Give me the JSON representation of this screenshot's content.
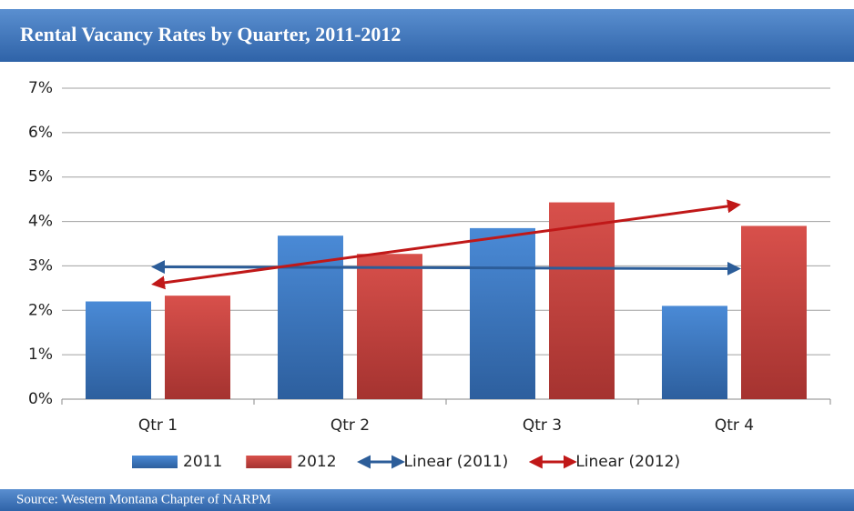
{
  "chart_data": {
    "type": "bar",
    "title": "Rental Vacancy Rates by Quarter, 2011-2012",
    "source": "Source: Western Montana Chapter of NARPM",
    "categories": [
      "Qtr 1",
      "Qtr 2",
      "Qtr 3",
      "Qtr 4"
    ],
    "series": [
      {
        "name": "2011",
        "color": "#3f7cc4",
        "values": [
          2.2,
          3.68,
          3.85,
          2.1
        ]
      },
      {
        "name": "2012",
        "color": "#c9403c",
        "values": [
          2.33,
          3.27,
          4.43,
          3.9
        ]
      }
    ],
    "trendlines": [
      {
        "name": "Linear (2011)",
        "color": "#2c5d99",
        "type": "linear",
        "source": "2011"
      },
      {
        "name": "Linear (2012)",
        "color": "#c01818",
        "type": "linear",
        "source": "2012"
      }
    ],
    "ylim": [
      0,
      7
    ],
    "yticks": [
      {
        "value": 0,
        "label": "0%"
      },
      {
        "value": 1,
        "label": "1%"
      },
      {
        "value": 2,
        "label": "2%"
      },
      {
        "value": 3,
        "label": "3%"
      },
      {
        "value": 4,
        "label": "4%"
      },
      {
        "value": 5,
        "label": "5%"
      },
      {
        "value": 6,
        "label": "6%"
      },
      {
        "value": 7,
        "label": "7%"
      }
    ],
    "grid": true,
    "legend": "bottom"
  }
}
